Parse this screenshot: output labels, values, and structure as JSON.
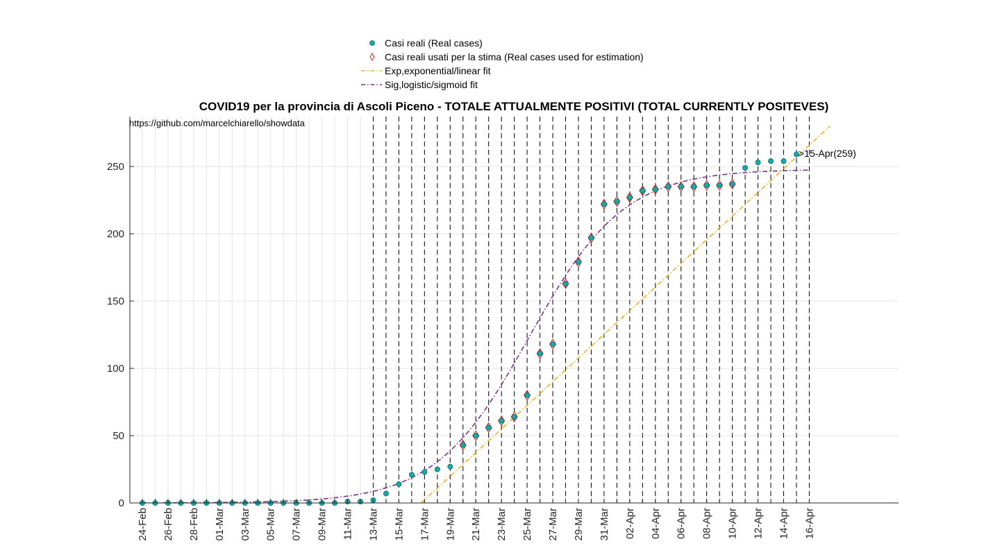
{
  "chart_data": {
    "type": "scatter",
    "title": "COVID19 per la provincia di Ascoli Piceno - TOTALE ATTUALMENTE POSITIVI (TOTAL CURRENTLY POSITEVES)",
    "source_text": "https://github.com/marcelchiarello/showdata",
    "annotation": ">15-Apr(259)",
    "xlabel": "",
    "ylabel": "",
    "xlim_days": [
      0,
      53
    ],
    "ylim": [
      0,
      280
    ],
    "yticks": [
      0,
      50,
      100,
      150,
      200,
      250
    ],
    "grid": true,
    "legend_placement": "top-center",
    "dates": [
      "24-Feb",
      "25-Feb",
      "26-Feb",
      "27-Feb",
      "28-Feb",
      "29-Feb",
      "01-Mar",
      "02-Mar",
      "03-Mar",
      "04-Mar",
      "05-Mar",
      "06-Mar",
      "07-Mar",
      "08-Mar",
      "09-Mar",
      "10-Mar",
      "11-Mar",
      "12-Mar",
      "13-Mar",
      "14-Mar",
      "15-Mar",
      "16-Mar",
      "17-Mar",
      "18-Mar",
      "19-Mar",
      "20-Mar",
      "21-Mar",
      "22-Mar",
      "23-Mar",
      "24-Mar",
      "25-Mar",
      "26-Mar",
      "27-Mar",
      "28-Mar",
      "29-Mar",
      "30-Mar",
      "31-Mar",
      "01-Apr",
      "02-Apr",
      "03-Apr",
      "04-Apr",
      "05-Apr",
      "06-Apr",
      "07-Apr",
      "08-Apr",
      "09-Apr",
      "10-Apr",
      "11-Apr",
      "12-Apr",
      "13-Apr",
      "14-Apr",
      "15-Apr",
      "16-Apr"
    ],
    "xtick_labels": [
      "24-Feb",
      "26-Feb",
      "28-Feb",
      "01-Mar",
      "03-Mar",
      "05-Mar",
      "07-Mar",
      "09-Mar",
      "11-Mar",
      "13-Mar",
      "15-Mar",
      "17-Mar",
      "19-Mar",
      "21-Mar",
      "23-Mar",
      "25-Mar",
      "27-Mar",
      "29-Mar",
      "31-Mar",
      "02-Apr",
      "04-Apr",
      "06-Apr",
      "08-Apr",
      "10-Apr",
      "12-Apr",
      "14-Apr",
      "16-Apr"
    ],
    "real_cases": [
      0,
      0,
      0,
      0,
      0,
      0,
      0,
      0,
      0,
      0,
      0,
      0,
      0,
      0,
      0,
      0,
      1,
      1,
      2,
      7,
      14,
      21,
      23,
      25,
      27,
      43,
      50,
      56,
      61,
      64,
      80,
      111,
      118,
      163,
      179,
      197,
      222,
      224,
      227,
      232,
      233,
      235,
      235,
      235,
      236,
      236,
      237,
      249,
      253,
      254,
      254,
      259
    ],
    "estimation_start_index": 25,
    "estimation_end_index": 46,
    "exp_fit": {
      "slope": 8.786,
      "intercept": -191.0
    },
    "sig_fit": {
      "K": 248,
      "midpoint": 30.2,
      "rate": 0.272
    },
    "series": [
      {
        "name": "Casi reali (Real cases)",
        "color": "#1aa8a8",
        "marker": "circle"
      },
      {
        "name": "Casi reali usati per la stima (Real cases used for estimation)",
        "color": "#e8241f",
        "marker": "diamond"
      },
      {
        "name": "Exp,exponential/linear fit",
        "color": "#edb120",
        "style": "dash-dot"
      },
      {
        "name": "Sig,logistic/sigmoid fit",
        "color": "#7e2f8e",
        "style": "dash-dot"
      }
    ]
  }
}
